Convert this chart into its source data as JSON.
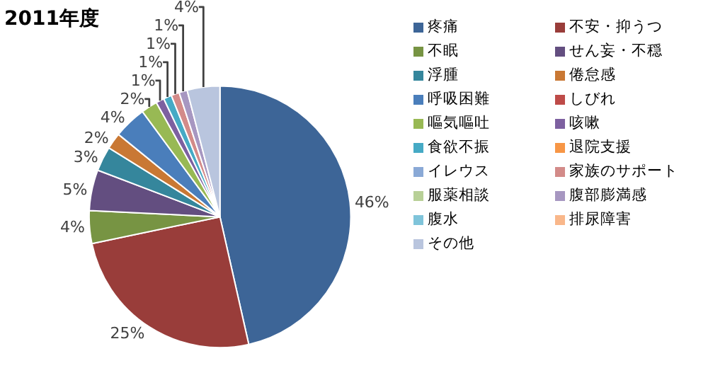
{
  "chart_data": {
    "type": "pie",
    "title": "2011年度",
    "categories": [
      "疼痛",
      "不安・抑うつ",
      "不眠",
      "せん妄・不穏",
      "浮腫",
      "倦怠感",
      "呼吸困難",
      "しびれ",
      "嘔気嘔吐",
      "咳嗽",
      "食欲不振",
      "退院支援",
      "イレウス",
      "家族のサポート",
      "服薬相談",
      "腹部膨満感",
      "腹水",
      "排尿障害",
      "その他"
    ],
    "values": [
      46,
      25,
      4,
      5,
      3,
      2,
      4,
      null,
      2,
      1,
      1,
      null,
      null,
      1,
      null,
      1,
      null,
      null,
      4
    ],
    "value_labels": [
      "46%",
      "25%",
      "4%",
      "5%",
      "3%",
      "2%",
      "4%",
      null,
      "2%",
      "1%",
      "1%",
      null,
      null,
      "1%",
      null,
      "1%",
      null,
      null,
      "4%"
    ],
    "colors": [
      "#3d6597",
      "#993d3a",
      "#779443",
      "#634e80",
      "#35869c",
      "#c97834",
      "#4a7ebb",
      "#be4b48",
      "#98b954",
      "#7d60a0",
      "#46aac5",
      "#f79646",
      "#8aa9d6",
      "#d38b89",
      "#b8d097",
      "#a797c1",
      "#7fc4da",
      "#f9b78a",
      "#b9c5de"
    ],
    "legend": "right"
  }
}
